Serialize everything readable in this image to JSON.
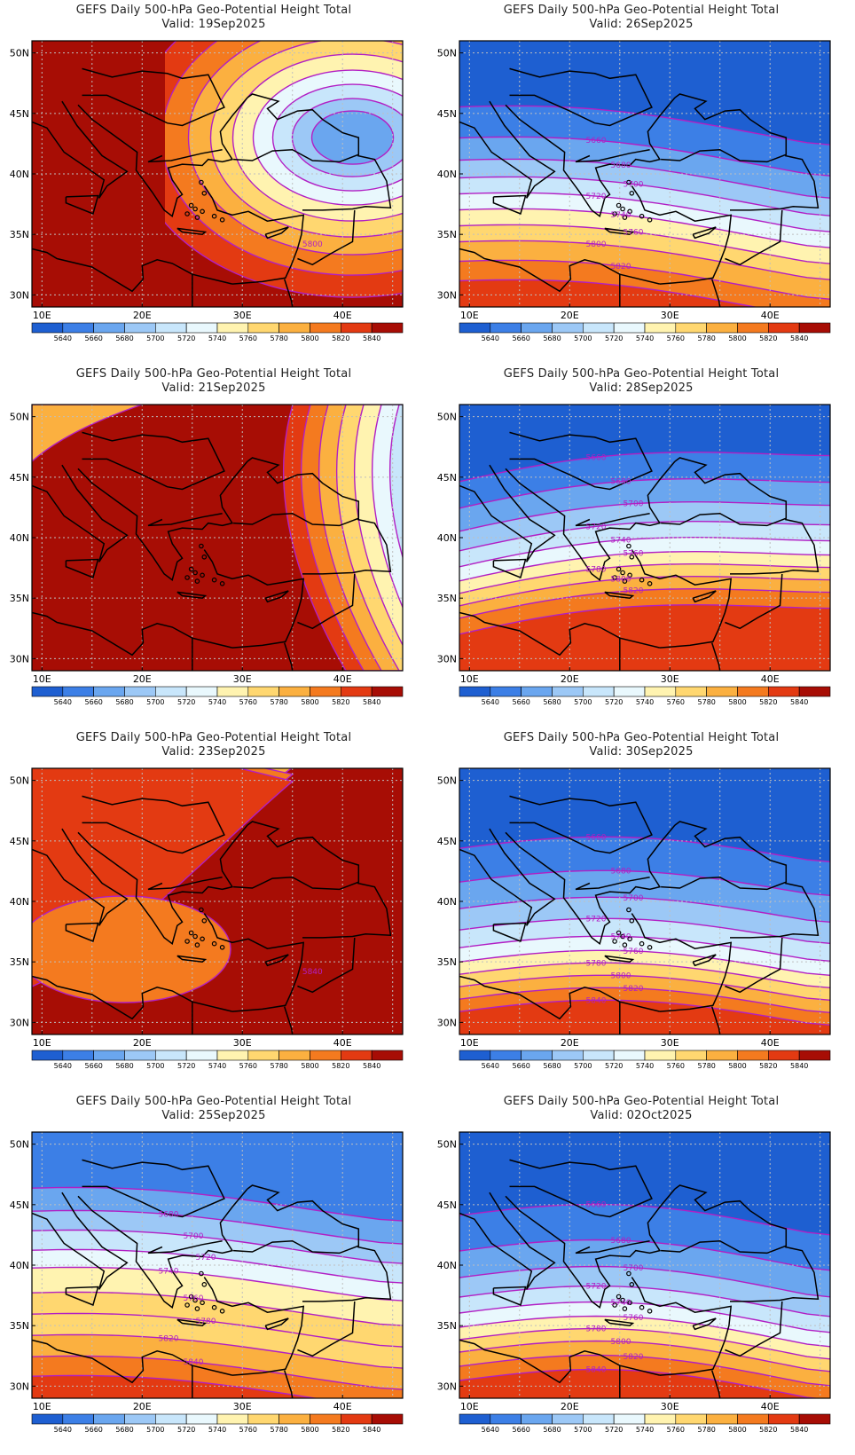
{
  "title_prefix": "GEFS Daily 500-hPa Geo-Potential Height Total",
  "lat_labels": [
    "50N",
    "45N",
    "40N",
    "35N",
    "30N"
  ],
  "lon_labels": [
    "10E",
    "20E",
    "30E",
    "40E"
  ],
  "colorbar": {
    "levels": [
      "5640",
      "5660",
      "5680",
      "5700",
      "5720",
      "5740",
      "5760",
      "5780",
      "5800",
      "5820",
      "5840"
    ],
    "colors": [
      "#1e5fd1",
      "#3c7fe6",
      "#6aa6ef",
      "#9cc8f6",
      "#c8e6fb",
      "#e9f8fd",
      "#fff3b0",
      "#ffd770",
      "#fbb040",
      "#f47a1f",
      "#e33a12",
      "#a70d05"
    ]
  },
  "contour_color": "#b21fc4",
  "panels": [
    {
      "id": "p1",
      "title": "GEFS Daily 500-hPa Geo-Potential Height Total",
      "valid": "Valid: 19Sep2025",
      "labels": [
        "5800"
      ]
    },
    {
      "id": "p2",
      "title": "GEFS Daily 500-hPa Geo-Potential Height Total",
      "valid": "Valid: 26Sep2025",
      "labels": [
        "5660",
        "5680",
        "5700",
        "5720",
        "5740",
        "5760",
        "5800",
        "5820"
      ]
    },
    {
      "id": "p3",
      "title": "GEFS Daily 500-hPa Geo-Potential Height Total",
      "valid": "Valid: 21Sep2025",
      "labels": []
    },
    {
      "id": "p4",
      "title": "GEFS Daily 500-hPa Geo-Potential Height Total",
      "valid": "Valid: 28Sep2025",
      "labels": [
        "5660",
        "5680",
        "5700",
        "5720",
        "5740",
        "5760",
        "5780",
        "5800",
        "5820"
      ]
    },
    {
      "id": "p5",
      "title": "GEFS Daily 500-hPa Geo-Potential Height Total",
      "valid": "Valid: 23Sep2025",
      "labels": [
        "5840"
      ]
    },
    {
      "id": "p6",
      "title": "GEFS Daily 500-hPa Geo-Potential Height Total",
      "valid": "Valid: 30Sep2025",
      "labels": [
        "5660",
        "5680",
        "5700",
        "5720",
        "5740",
        "5760",
        "5780",
        "5800",
        "5820",
        "5840"
      ]
    },
    {
      "id": "p7",
      "title": "GEFS Daily 500-hPa Geo-Potential Height Total",
      "valid": "Valid: 25Sep2025",
      "labels": [
        "5680",
        "5700",
        "5720",
        "5740",
        "5760",
        "5780",
        "5820",
        "5840"
      ]
    },
    {
      "id": "p8",
      "title": "GEFS Daily 500-hPa Geo-Potential Height Total",
      "valid": "Valid: 02Oct2025",
      "labels": [
        "5660",
        "5680",
        "5700",
        "5720",
        "5740",
        "5760",
        "5780",
        "5800",
        "5820",
        "5840"
      ]
    }
  ]
}
